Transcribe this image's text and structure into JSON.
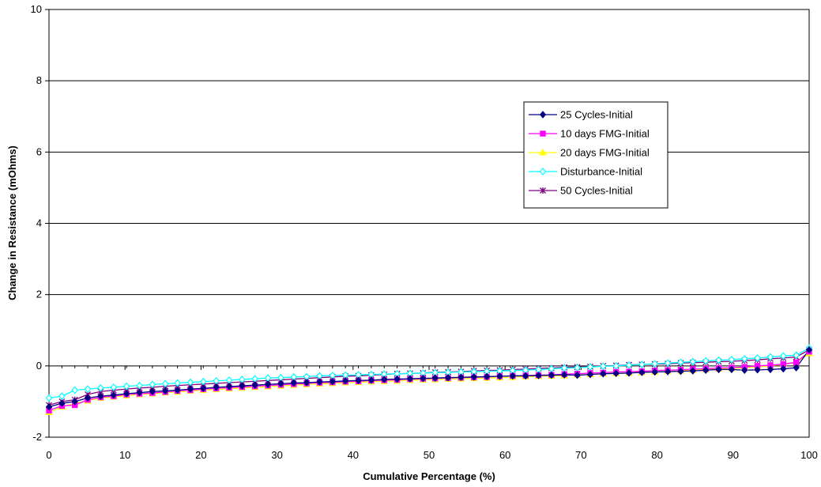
{
  "chart_data": {
    "type": "line",
    "xlabel": "Cumulative Percentage (%)",
    "ylabel": "Change in Resistance (mOhms)",
    "xlim": [
      0,
      100
    ],
    "ylim": [
      -2,
      10
    ],
    "x_ticks": [
      "0",
      "10",
      "20",
      "30",
      "40",
      "50",
      "60",
      "70",
      "80",
      "90",
      "100"
    ],
    "y_ticks": [
      "-2",
      "0",
      "2",
      "4",
      "6",
      "8",
      "10"
    ],
    "grid": "horizontal",
    "legend_position": "right-center",
    "x": [
      0,
      1.7,
      3.4,
      5.1,
      6.8,
      8.5,
      10.2,
      11.9,
      13.6,
      15.3,
      16.9,
      18.6,
      20.3,
      22.0,
      23.7,
      25.4,
      27.1,
      28.8,
      30.5,
      32.2,
      33.9,
      35.6,
      37.3,
      39.0,
      40.7,
      42.4,
      44.1,
      45.8,
      47.5,
      49.2,
      50.8,
      52.5,
      54.2,
      55.9,
      57.6,
      59.3,
      61.0,
      62.7,
      64.4,
      66.1,
      67.8,
      69.5,
      71.2,
      72.9,
      74.6,
      76.3,
      78.0,
      79.7,
      81.4,
      83.1,
      84.7,
      86.4,
      88.1,
      89.8,
      91.5,
      93.2,
      94.9,
      96.6,
      98.3,
      100
    ],
    "series": [
      {
        "name": "25 Cycles-Initial",
        "color": "#000080",
        "marker": "diamond",
        "values": [
          -1.15,
          -1.05,
          -1.0,
          -0.9,
          -0.85,
          -0.82,
          -0.78,
          -0.75,
          -0.72,
          -0.7,
          -0.68,
          -0.65,
          -0.63,
          -0.6,
          -0.58,
          -0.56,
          -0.54,
          -0.52,
          -0.5,
          -0.48,
          -0.47,
          -0.45,
          -0.44,
          -0.42,
          -0.41,
          -0.4,
          -0.38,
          -0.37,
          -0.36,
          -0.35,
          -0.34,
          -0.33,
          -0.32,
          -0.31,
          -0.3,
          -0.29,
          -0.28,
          -0.28,
          -0.27,
          -0.26,
          -0.25,
          -0.26,
          -0.24,
          -0.22,
          -0.21,
          -0.2,
          -0.18,
          -0.17,
          -0.16,
          -0.15,
          -0.14,
          -0.12,
          -0.1,
          -0.1,
          -0.12,
          -0.11,
          -0.1,
          -0.08,
          -0.05,
          0.45
        ]
      },
      {
        "name": "10 days FMG-Initial",
        "color": "#ff00ff",
        "marker": "square",
        "values": [
          -1.25,
          -1.12,
          -1.1,
          -0.95,
          -0.88,
          -0.85,
          -0.8,
          -0.78,
          -0.76,
          -0.73,
          -0.7,
          -0.68,
          -0.65,
          -0.63,
          -0.61,
          -0.59,
          -0.57,
          -0.55,
          -0.53,
          -0.51,
          -0.49,
          -0.47,
          -0.46,
          -0.44,
          -0.43,
          -0.41,
          -0.4,
          -0.39,
          -0.37,
          -0.36,
          -0.35,
          -0.34,
          -0.33,
          -0.32,
          -0.31,
          -0.29,
          -0.28,
          -0.27,
          -0.26,
          -0.25,
          -0.23,
          -0.22,
          -0.2,
          -0.19,
          -0.17,
          -0.16,
          -0.15,
          -0.13,
          -0.12,
          -0.11,
          -0.09,
          -0.08,
          -0.06,
          -0.05,
          -0.03,
          0.0,
          0.02,
          0.05,
          0.1,
          0.4
        ]
      },
      {
        "name": "20 days FMG-Initial",
        "color": "#ffff00",
        "marker": "triangle",
        "values": [
          -1.3,
          -1.15,
          -1.05,
          -0.98,
          -0.9,
          -0.87,
          -0.83,
          -0.8,
          -0.78,
          -0.75,
          -0.73,
          -0.7,
          -0.68,
          -0.66,
          -0.64,
          -0.62,
          -0.6,
          -0.58,
          -0.56,
          -0.54,
          -0.52,
          -0.5,
          -0.49,
          -0.47,
          -0.46,
          -0.44,
          -0.43,
          -0.42,
          -0.4,
          -0.39,
          -0.38,
          -0.37,
          -0.36,
          -0.35,
          -0.34,
          -0.33,
          -0.32,
          -0.3,
          -0.29,
          -0.28,
          -0.27,
          -0.25,
          -0.24,
          -0.22,
          -0.21,
          -0.2,
          -0.18,
          -0.17,
          -0.15,
          -0.14,
          -0.12,
          -0.1,
          -0.08,
          -0.07,
          -0.05,
          -0.03,
          0.0,
          0.05,
          0.1,
          0.35
        ]
      },
      {
        "name": "Disturbance-Initial",
        "color": "#00ffff",
        "marker": "open-diamond",
        "values": [
          -0.9,
          -0.85,
          -0.68,
          -0.65,
          -0.62,
          -0.6,
          -0.57,
          -0.55,
          -0.52,
          -0.5,
          -0.48,
          -0.46,
          -0.44,
          -0.42,
          -0.4,
          -0.38,
          -0.36,
          -0.34,
          -0.33,
          -0.31,
          -0.3,
          -0.28,
          -0.27,
          -0.26,
          -0.25,
          -0.24,
          -0.23,
          -0.22,
          -0.21,
          -0.2,
          -0.19,
          -0.18,
          -0.17,
          -0.16,
          -0.15,
          -0.14,
          -0.13,
          -0.12,
          -0.1,
          -0.08,
          -0.06,
          -0.05,
          -0.03,
          -0.01,
          0.0,
          0.02,
          0.04,
          0.06,
          0.08,
          0.1,
          0.12,
          0.14,
          0.16,
          0.18,
          0.2,
          0.22,
          0.25,
          0.28,
          0.3,
          0.5
        ]
      },
      {
        "name": "50 Cycles-Initial",
        "color": "#800080",
        "marker": "star",
        "values": [
          -1.1,
          -1.0,
          -0.95,
          -0.8,
          -0.72,
          -0.68,
          -0.65,
          -0.62,
          -0.6,
          -0.57,
          -0.55,
          -0.53,
          -0.51,
          -0.49,
          -0.47,
          -0.45,
          -0.43,
          -0.41,
          -0.39,
          -0.37,
          -0.35,
          -0.33,
          -0.31,
          -0.29,
          -0.28,
          -0.26,
          -0.24,
          -0.22,
          -0.21,
          -0.2,
          -0.18,
          -0.17,
          -0.16,
          -0.14,
          -0.13,
          -0.12,
          -0.1,
          -0.09,
          -0.07,
          -0.06,
          -0.04,
          -0.03,
          -0.02,
          0.0,
          0.01,
          0.03,
          0.04,
          0.05,
          0.06,
          0.08,
          0.09,
          0.1,
          0.12,
          0.13,
          0.15,
          0.17,
          0.2,
          0.22,
          0.25,
          0.45
        ]
      }
    ]
  }
}
